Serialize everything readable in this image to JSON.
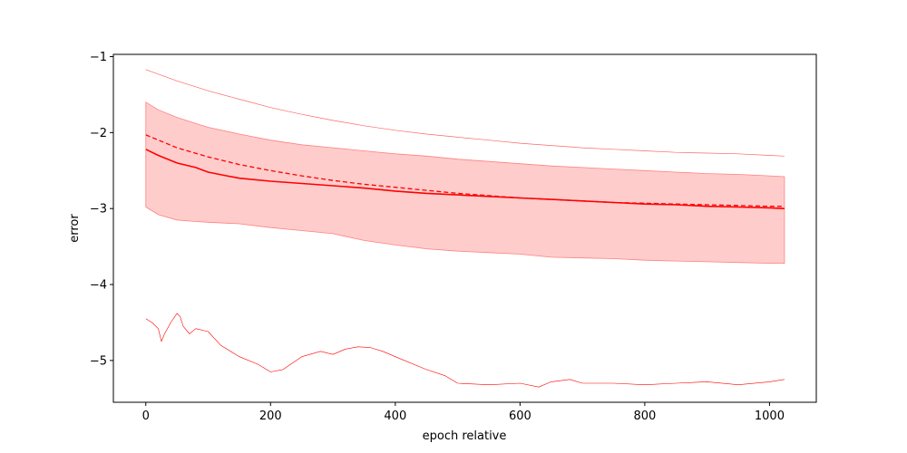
{
  "chart_data": {
    "type": "line",
    "title": "",
    "xlabel": "epoch relative",
    "ylabel": "error",
    "xlim": [
      -52,
      1075
    ],
    "ylim": [
      -5.55,
      -0.97
    ],
    "grid": false,
    "xticks": [
      0,
      200,
      400,
      600,
      800,
      1000
    ],
    "yticks": [
      -1,
      -2,
      -3,
      -4,
      -5
    ],
    "xtick_labels": [
      "0",
      "200",
      "400",
      "600",
      "800",
      "1000"
    ],
    "ytick_labels": [
      "−1",
      "−2",
      "−3",
      "−4",
      "−5"
    ],
    "colors": {
      "line": "#ff0000",
      "band_fill": "#ffcccc",
      "band_edge": "#ff8080",
      "thin_line": "#ff6666"
    },
    "series": [
      {
        "role": "median-line",
        "style": "solid",
        "x": [
          0,
          20,
          50,
          80,
          100,
          130,
          150,
          200,
          250,
          300,
          350,
          400,
          450,
          500,
          550,
          600,
          650,
          700,
          750,
          800,
          850,
          900,
          950,
          1000,
          1024
        ],
        "y": [
          -2.22,
          -2.3,
          -2.4,
          -2.46,
          -2.52,
          -2.57,
          -2.6,
          -2.64,
          -2.67,
          -2.7,
          -2.73,
          -2.77,
          -2.8,
          -2.82,
          -2.84,
          -2.86,
          -2.88,
          -2.9,
          -2.92,
          -2.94,
          -2.95,
          -2.97,
          -2.98,
          -2.99,
          -3.0
        ]
      },
      {
        "role": "mean-line",
        "style": "dashed",
        "x": [
          0,
          50,
          100,
          150,
          200,
          250,
          300,
          350,
          400,
          450,
          500,
          550,
          600,
          650,
          700,
          750,
          800,
          850,
          900,
          950,
          1000,
          1024
        ],
        "y": [
          -2.03,
          -2.2,
          -2.32,
          -2.42,
          -2.5,
          -2.57,
          -2.63,
          -2.68,
          -2.72,
          -2.76,
          -2.8,
          -2.83,
          -2.86,
          -2.88,
          -2.9,
          -2.92,
          -2.93,
          -2.94,
          -2.95,
          -2.96,
          -2.97,
          -2.97
        ]
      },
      {
        "role": "max-line",
        "style": "thin",
        "x": [
          0,
          50,
          100,
          150,
          200,
          250,
          300,
          350,
          400,
          450,
          500,
          550,
          600,
          650,
          700,
          750,
          800,
          850,
          900,
          950,
          1000,
          1024
        ],
        "y": [
          -1.17,
          -1.32,
          -1.45,
          -1.56,
          -1.67,
          -1.76,
          -1.84,
          -1.91,
          -1.97,
          -2.02,
          -2.06,
          -2.1,
          -2.14,
          -2.17,
          -2.2,
          -2.22,
          -2.24,
          -2.26,
          -2.27,
          -2.28,
          -2.3,
          -2.31
        ]
      },
      {
        "role": "min-line",
        "style": "thin-noisy",
        "x": [
          0,
          10,
          20,
          25,
          30,
          40,
          50,
          55,
          60,
          70,
          80,
          100,
          120,
          150,
          180,
          200,
          220,
          250,
          280,
          300,
          320,
          340,
          360,
          380,
          400,
          450,
          480,
          500,
          550,
          600,
          630,
          650,
          680,
          700,
          750,
          800,
          850,
          900,
          950,
          1000,
          1024
        ],
        "y": [
          -4.45,
          -4.5,
          -4.58,
          -4.75,
          -4.65,
          -4.5,
          -4.38,
          -4.42,
          -4.55,
          -4.65,
          -4.58,
          -4.62,
          -4.8,
          -4.95,
          -5.05,
          -5.15,
          -5.12,
          -4.95,
          -4.88,
          -4.92,
          -4.85,
          -4.82,
          -4.83,
          -4.88,
          -4.95,
          -5.12,
          -5.2,
          -5.3,
          -5.32,
          -5.3,
          -5.35,
          -5.28,
          -5.25,
          -5.3,
          -5.3,
          -5.32,
          -5.3,
          -5.28,
          -5.32,
          -5.28,
          -5.25
        ]
      }
    ],
    "band": {
      "role": "spread-band",
      "x": [
        0,
        20,
        50,
        80,
        100,
        150,
        200,
        250,
        300,
        350,
        400,
        450,
        500,
        550,
        600,
        650,
        700,
        750,
        800,
        850,
        900,
        950,
        1000,
        1024
      ],
      "upper": [
        -1.6,
        -1.7,
        -1.8,
        -1.88,
        -1.93,
        -2.02,
        -2.1,
        -2.16,
        -2.2,
        -2.24,
        -2.28,
        -2.31,
        -2.35,
        -2.38,
        -2.41,
        -2.44,
        -2.46,
        -2.48,
        -2.5,
        -2.52,
        -2.54,
        -2.55,
        -2.57,
        -2.58
      ],
      "lower": [
        -2.98,
        -3.08,
        -3.15,
        -3.17,
        -3.18,
        -3.2,
        -3.25,
        -3.29,
        -3.33,
        -3.42,
        -3.48,
        -3.53,
        -3.56,
        -3.58,
        -3.6,
        -3.64,
        -3.65,
        -3.66,
        -3.68,
        -3.69,
        -3.7,
        -3.71,
        -3.72,
        -3.72
      ]
    }
  }
}
